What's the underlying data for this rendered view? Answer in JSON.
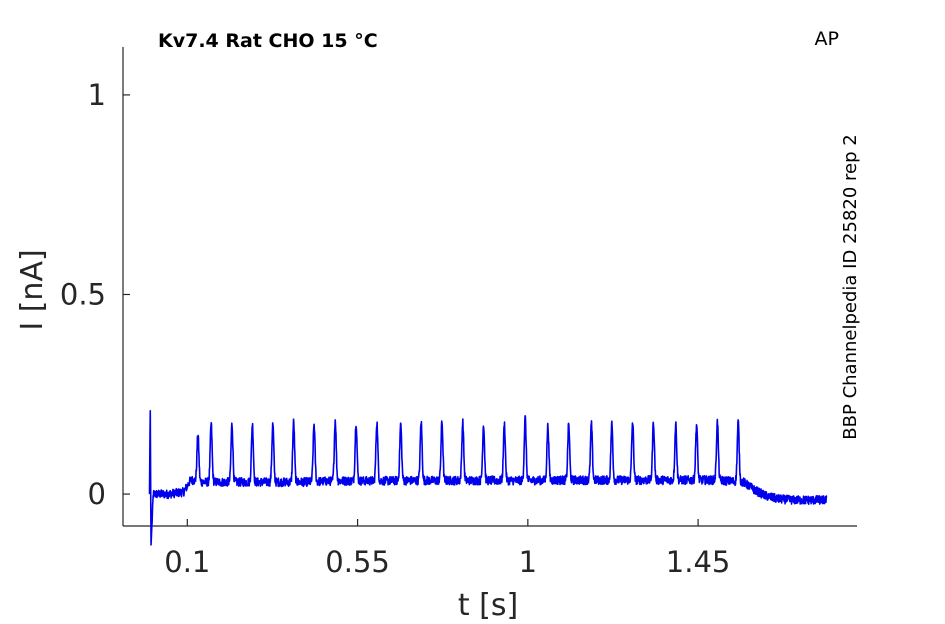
{
  "chart_data": {
    "type": "line",
    "title": "Kv7.4  Rat  CHO  15 °C",
    "protocol": "AP",
    "source": "BBP Channelpedia ID 25820 rep 2",
    "xlabel": "t [s]",
    "ylabel": "I [nA]",
    "xlim": [
      -0.07,
      1.87
    ],
    "ylim": [
      -0.08,
      1.12
    ],
    "xticks": [
      0.1,
      0.55,
      1,
      1.45
    ],
    "xtick_labels": [
      "0.1",
      "0.55",
      "1",
      "1.45"
    ],
    "yticks": [
      0,
      0.5,
      1
    ],
    "ytick_labels": [
      "0",
      "0.5",
      "1"
    ],
    "grid": false,
    "line_color": "#0000ee",
    "series": [
      {
        "x": [
          0.0,
          0.002,
          0.004,
          0.01,
          0.05,
          0.09,
          0.1,
          0.105,
          0.11,
          0.115,
          0.13,
          0.2,
          0.3,
          0.4,
          0.5,
          0.6,
          0.7,
          0.8,
          0.9,
          1.0,
          1.1,
          1.2,
          1.3,
          1.4,
          1.5,
          1.57,
          1.6,
          1.63,
          1.66,
          1.7,
          1.75,
          1.79
        ],
        "y": [
          0.0,
          0.22,
          -0.13,
          0.0,
          0.0,
          0.005,
          0.02,
          0.03,
          0.035,
          0.035,
          0.03,
          0.03,
          0.03,
          0.03,
          0.033,
          0.033,
          0.034,
          0.034,
          0.034,
          0.034,
          0.035,
          0.035,
          0.035,
          0.035,
          0.035,
          0.03,
          0.01,
          -0.005,
          -0.012,
          -0.015,
          -0.015,
          -0.015
        ]
      }
    ],
    "spikes": {
      "x": [
        0.128,
        0.163,
        0.218,
        0.272,
        0.326,
        0.381,
        0.435,
        0.491,
        0.546,
        0.601,
        0.664,
        0.718,
        0.773,
        0.828,
        0.883,
        0.938,
        0.993,
        1.053,
        1.108,
        1.168,
        1.222,
        1.277,
        1.332,
        1.391,
        1.446,
        1.501,
        1.556
      ],
      "y": [
        0.15,
        0.175,
        0.175,
        0.175,
        0.175,
        0.18,
        0.175,
        0.185,
        0.18,
        0.18,
        0.175,
        0.18,
        0.18,
        0.18,
        0.175,
        0.175,
        0.19,
        0.17,
        0.175,
        0.175,
        0.175,
        0.18,
        0.18,
        0.175,
        0.175,
        0.18,
        0.18
      ]
    }
  }
}
